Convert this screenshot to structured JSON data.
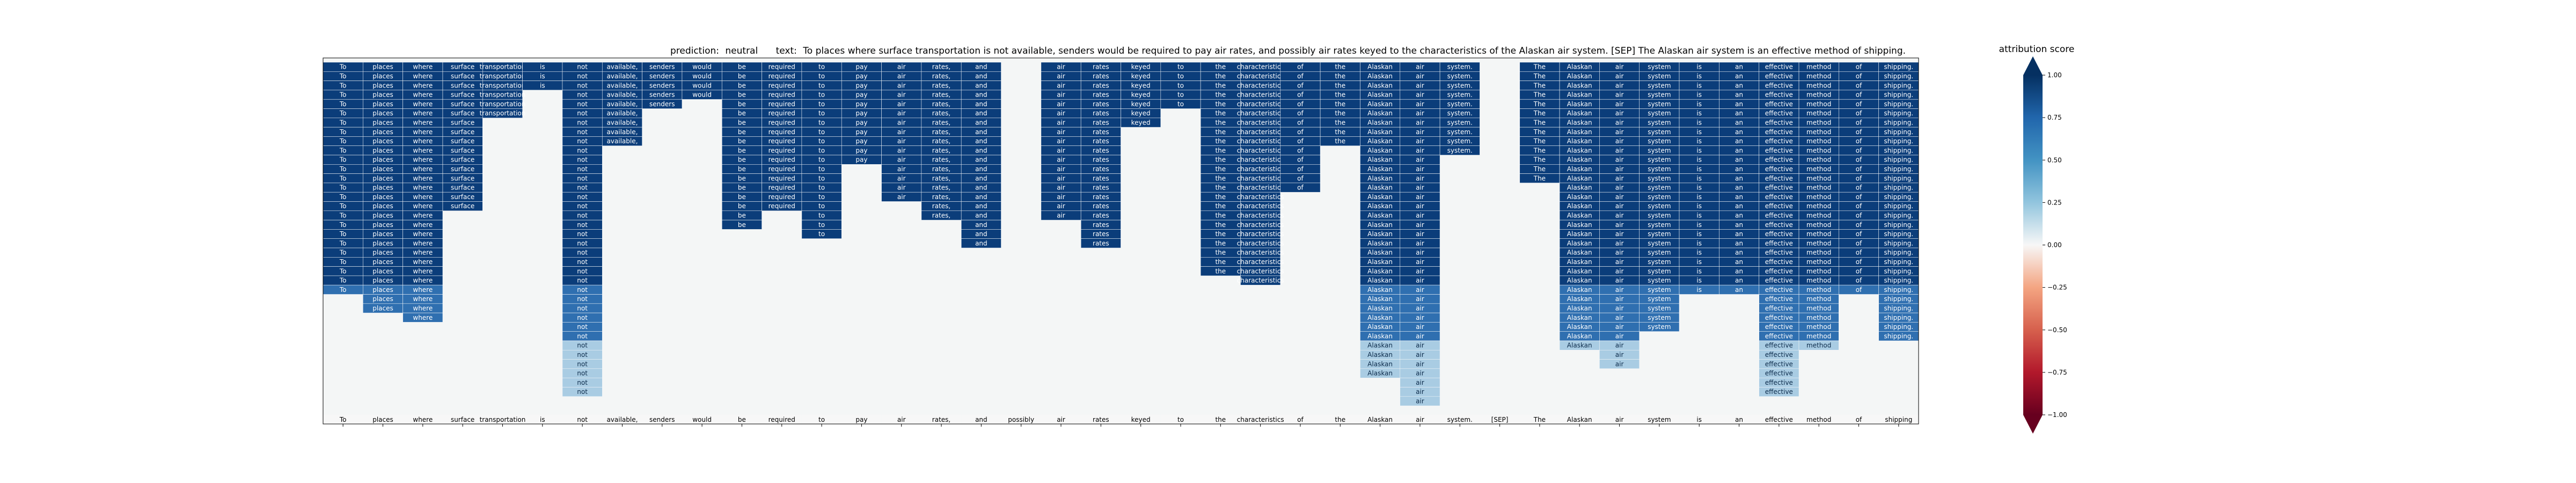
{
  "chart_data": {
    "type": "heatmap",
    "title_prediction_label": "prediction:",
    "prediction": "neutral",
    "title_text_label": "text:",
    "text": "To places where surface transportation is not available, senders would be required to pay air rates, and possibly air rates keyed to the characteristics of the Alaskan air system. [SEP] The Alaskan air system is an effective method of shipping.",
    "tokens": [
      "To",
      "places",
      "where",
      "surface",
      "transportation",
      "is",
      "not",
      "available,",
      "senders",
      "would",
      "be",
      "required",
      "to",
      "pay",
      "air",
      "rates,",
      "and",
      "possibly",
      "air",
      "rates",
      "keyed",
      "to",
      "the",
      "characteristics",
      "of",
      "the",
      "Alaskan",
      "air",
      "system.",
      "[SEP]",
      "The",
      "Alaskan",
      "air",
      "system",
      "is",
      "an",
      "effective",
      "method",
      "of",
      "shipping."
    ],
    "column_heights": [
      25,
      27,
      28,
      16,
      6,
      3,
      36,
      9,
      5,
      4,
      18,
      16,
      19,
      11,
      15,
      17,
      20,
      0,
      17,
      20,
      7,
      5,
      23,
      24,
      14,
      9,
      34,
      37,
      10,
      0,
      13,
      31,
      33,
      29,
      25,
      25,
      36,
      31,
      25,
      30
    ],
    "x_tick_labels": [
      "To",
      "places",
      "where",
      "surface",
      "transportation",
      "is",
      "not",
      "available,",
      "senders",
      "would",
      "be",
      "required",
      "to",
      "pay",
      "air",
      "rates,",
      "and",
      "possibly",
      "air",
      "rates",
      "keyed",
      "to",
      "the",
      "characteristics",
      "of",
      "the",
      "Alaskan",
      "air",
      "system.",
      "[SEP]",
      "The",
      "Alaskan",
      "air",
      "system",
      "is",
      "an",
      "effective",
      "method",
      "of",
      "shipping"
    ],
    "colorbar": {
      "title": "attribution score",
      "min": -1.0,
      "max": 1.0,
      "ticks": [
        "1.00",
        "0.75",
        "0.50",
        "0.25",
        "0.00",
        "−0.25",
        "−0.50",
        "−0.75",
        "−1.00"
      ],
      "colormap": "RdBu"
    },
    "colors": {
      "dark_blue": "#0b3d7a",
      "mid_blue": "#2f6fb0",
      "light_blue": "#a9cce3",
      "background": "#f4f6f6",
      "cell_border": "#f0f4f8"
    }
  }
}
